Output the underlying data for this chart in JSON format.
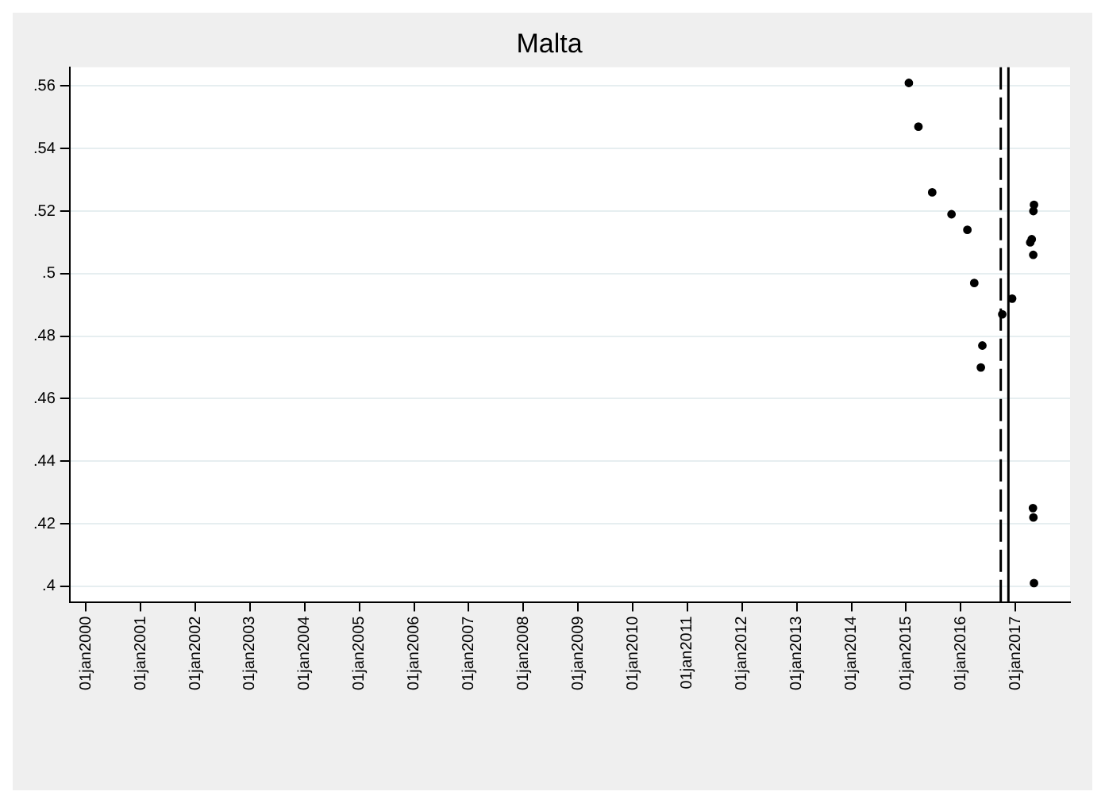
{
  "chart_data": {
    "type": "scatter",
    "title": "Malta",
    "x": [
      "2015-01-20",
      "2015-03-25",
      "2015-06-25",
      "2015-11-01",
      "2016-02-15",
      "2016-04-01",
      "2016-05-25",
      "2016-05-15",
      "2016-10-05",
      "2016-12-10",
      "2017-04-10",
      "2017-04-20",
      "2017-04-30",
      "2017-05-01",
      "2017-05-05",
      "2017-04-28",
      "2017-05-01",
      "2017-05-05"
    ],
    "values": [
      0.561,
      0.547,
      0.526,
      0.519,
      0.514,
      0.497,
      0.477,
      0.47,
      0.487,
      0.492,
      0.51,
      0.511,
      0.506,
      0.52,
      0.522,
      0.425,
      0.422,
      0.401
    ],
    "color": "#000000",
    "marker": "circle",
    "xlim": [
      "1999-09-15",
      "2018-01-01"
    ],
    "xticks": [
      {
        "value": "2000-01-01",
        "label": "01jan2000"
      },
      {
        "value": "2001-01-01",
        "label": "01jan2001"
      },
      {
        "value": "2002-01-01",
        "label": "01jan2002"
      },
      {
        "value": "2003-01-01",
        "label": "01jan2003"
      },
      {
        "value": "2004-01-01",
        "label": "01jan2004"
      },
      {
        "value": "2005-01-01",
        "label": "01jan2005"
      },
      {
        "value": "2006-01-01",
        "label": "01jan2006"
      },
      {
        "value": "2007-01-01",
        "label": "01jan2007"
      },
      {
        "value": "2008-01-01",
        "label": "01jan2008"
      },
      {
        "value": "2009-01-01",
        "label": "01jan2009"
      },
      {
        "value": "2010-01-01",
        "label": "01jan2010"
      },
      {
        "value": "2011-01-01",
        "label": "01jan2011"
      },
      {
        "value": "2012-01-01",
        "label": "01jan2012"
      },
      {
        "value": "2013-01-01",
        "label": "01jan2013"
      },
      {
        "value": "2014-01-01",
        "label": "01jan2014"
      },
      {
        "value": "2015-01-01",
        "label": "01jan2015"
      },
      {
        "value": "2016-01-01",
        "label": "01jan2016"
      },
      {
        "value": "2017-01-01",
        "label": "01jan2017"
      }
    ],
    "ylim": [
      0.395,
      0.566
    ],
    "yticks": [
      {
        "value": 0.4,
        "label": ".4"
      },
      {
        "value": 0.42,
        "label": ".42"
      },
      {
        "value": 0.44,
        "label": ".44"
      },
      {
        "value": 0.46,
        "label": ".46"
      },
      {
        "value": 0.48,
        "label": ".48"
      },
      {
        "value": 0.5,
        "label": ".5"
      },
      {
        "value": 0.52,
        "label": ".52"
      },
      {
        "value": 0.54,
        "label": ".54"
      },
      {
        "value": 0.56,
        "label": ".56"
      }
    ],
    "grid": "y",
    "legend": false,
    "ref_lines": [
      {
        "axis": "x",
        "value": "2016-09-25",
        "color": "#000000",
        "line_style": "dashed"
      },
      {
        "axis": "x",
        "value": "2016-11-15",
        "color": "#000000",
        "line_style": "solid"
      }
    ]
  }
}
